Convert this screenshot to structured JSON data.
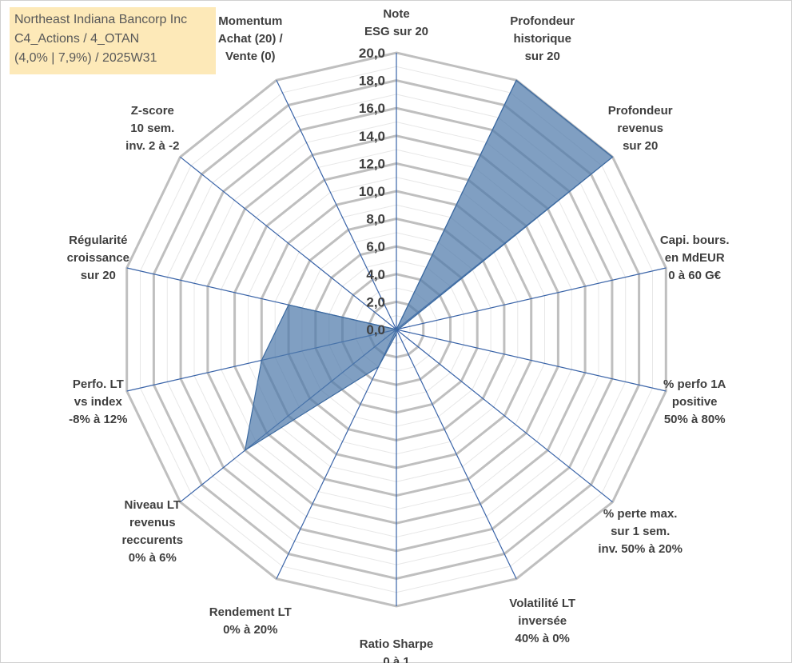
{
  "title_box": {
    "line1": "Northeast Indiana Bancorp Inc",
    "line2": "C4_Actions / 4_OTAN",
    "line3": "(4,0% | 7,9%) / 2025W31"
  },
  "chart_data": {
    "type": "radar",
    "rmin": 0,
    "rmax": 20,
    "tick_step": 2,
    "tick_labels": [
      "0,0",
      "2,0",
      "4,0",
      "6,0",
      "8,0",
      "10,0",
      "12,0",
      "14,0",
      "16,0",
      "18,0",
      "20,0"
    ],
    "grid_minor_count": 20,
    "axes": [
      {
        "label": [
          "Note",
          "ESG sur 20"
        ],
        "value": 0
      },
      {
        "label": [
          "Profondeur",
          "historique",
          "sur 20"
        ],
        "value": 20
      },
      {
        "label": [
          "Profondeur",
          "revenus",
          "sur 20"
        ],
        "value": 20
      },
      {
        "label": [
          "Capi. bours.",
          "en MdEUR",
          "0 à 60 G€"
        ],
        "value": 0.2
      },
      {
        "label": [
          "% perfo 1A",
          "positive",
          "50% à 80%"
        ],
        "value": 0
      },
      {
        "label": [
          "% perte max.",
          "sur 1 sem.",
          "inv. 50% à 20%"
        ],
        "value": 0
      },
      {
        "label": [
          "Volatilité LT",
          "inversée",
          "40% à 0%"
        ],
        "value": 0
      },
      {
        "label": [
          "Ratio Sharpe",
          "0 à 1"
        ],
        "value": 0.3
      },
      {
        "label": [
          "Rendement LT",
          "0% à 20%"
        ],
        "value": 3
      },
      {
        "label": [
          "Niveau LT",
          "revenus",
          "reccurents",
          "0% à 6%"
        ],
        "value": 14
      },
      {
        "label": [
          "Perfo. LT",
          "vs index",
          "-8% à 12%"
        ],
        "value": 10
      },
      {
        "label": [
          "Régularité",
          "croissance",
          "sur 20"
        ],
        "value": 8
      },
      {
        "label": [
          "Z-score",
          "10 sem.",
          "inv. 2 à -2"
        ],
        "value": 0
      },
      {
        "label": [
          "Momentum",
          "Achat (20) /",
          "Vente (0)"
        ],
        "value": 0
      }
    ],
    "series": [
      {
        "values": [
          0,
          20,
          20,
          0.2,
          0,
          0,
          0,
          0.3,
          3,
          14,
          10,
          8,
          0,
          0
        ]
      }
    ],
    "colors": {
      "fill": "#4f7aab",
      "fill_opacity": 0.72,
      "stroke": "#3c6aa0",
      "spoke": "#3a64a8",
      "grid_major": "#bfbfbf",
      "grid_minor": "#e7e7e7"
    }
  }
}
